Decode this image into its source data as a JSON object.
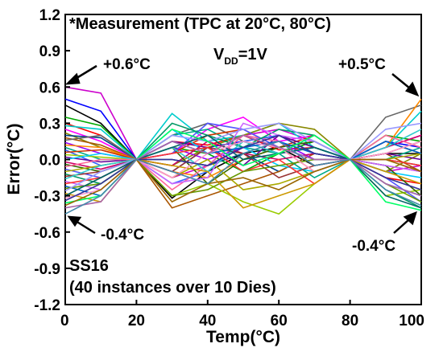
{
  "chart_data": {
    "type": "line",
    "title": "*Measurement (TPC at 20°C, 80°C)",
    "xlabel": "Temp(°C)",
    "ylabel": "Error(°C)",
    "xlim": [
      0,
      100
    ],
    "ylim": [
      -1.2,
      1.2
    ],
    "x_ticks": [
      0,
      20,
      40,
      60,
      80,
      100
    ],
    "y_ticks": [
      1.2,
      0.9,
      0.6,
      0.3,
      0.0,
      -0.3,
      -0.6,
      -0.9,
      -1.2
    ],
    "x_tick_labels": [
      "0",
      "20",
      "40",
      "60",
      "80",
      "100"
    ],
    "y_tick_labels": [
      "1.2",
      "0.9",
      "0.6",
      "0.3",
      "0.0",
      "-0.3",
      "-0.6",
      "-0.9",
      "-1.2"
    ],
    "x": [
      0,
      10,
      20,
      30,
      40,
      50,
      60,
      70,
      80,
      90,
      100
    ],
    "grid": false,
    "legend": "none",
    "annotations": {
      "vdd_main": "V",
      "vdd_sub": "DD",
      "vdd_value": "=1V",
      "max_left": "+0.6°C",
      "max_right": "+0.5°C",
      "min_left": "-0.4°C",
      "min_right": "-0.4°C",
      "corner": "SS16",
      "instances": "(40 instances over 10 Dies)"
    },
    "series": [
      {
        "color": "#cc00cc",
        "values": [
          0.6,
          0.55,
          0.0,
          -0.15,
          -0.05,
          0.2,
          0.25,
          0.15,
          0.0,
          -0.1,
          -0.05
        ]
      },
      {
        "color": "#0000ff",
        "values": [
          0.5,
          0.4,
          0.0,
          -0.1,
          0.1,
          0.15,
          0.05,
          0.1,
          0.0,
          0.15,
          0.1
        ]
      },
      {
        "color": "#000000",
        "values": [
          0.45,
          0.3,
          0.0,
          -0.32,
          -0.1,
          0.05,
          0.1,
          -0.05,
          0.0,
          0.05,
          0.05
        ]
      },
      {
        "color": "#00aa00",
        "values": [
          0.35,
          0.28,
          0.0,
          0.1,
          0.05,
          -0.1,
          0.05,
          0.15,
          0.0,
          0.2,
          0.15
        ]
      },
      {
        "color": "#ff0000",
        "values": [
          0.3,
          0.2,
          0.0,
          0.15,
          0.12,
          0.2,
          0.08,
          0.1,
          0.0,
          -0.15,
          -0.2
        ]
      },
      {
        "color": "#00cccc",
        "values": [
          0.28,
          0.25,
          0.0,
          0.38,
          0.15,
          0.2,
          0.3,
          0.1,
          0.0,
          0.1,
          0.4
        ]
      },
      {
        "color": "#ff00ff",
        "values": [
          0.25,
          0.15,
          0.0,
          0.05,
          0.25,
          0.35,
          0.15,
          0.2,
          0.0,
          0.1,
          0.2
        ]
      },
      {
        "color": "#888800",
        "values": [
          0.22,
          0.1,
          0.0,
          -0.05,
          0.1,
          0.2,
          0.3,
          0.25,
          0.0,
          -0.1,
          0.05
        ]
      },
      {
        "color": "#004488",
        "values": [
          0.2,
          0.18,
          0.0,
          0.0,
          -0.05,
          0.05,
          -0.1,
          0.05,
          0.0,
          0.0,
          -0.05
        ]
      },
      {
        "color": "#aa5500",
        "values": [
          0.18,
          0.12,
          0.0,
          -0.4,
          -0.3,
          -0.2,
          -0.1,
          0.05,
          0.0,
          0.05,
          -0.1
        ]
      },
      {
        "color": "#666666",
        "values": [
          0.16,
          0.2,
          0.0,
          0.2,
          0.3,
          0.15,
          0.2,
          0.1,
          0.0,
          0.35,
          0.45
        ]
      },
      {
        "color": "#9900ff",
        "values": [
          0.14,
          0.05,
          0.0,
          0.1,
          0.0,
          0.1,
          0.15,
          0.0,
          0.0,
          -0.05,
          -0.1
        ]
      },
      {
        "color": "#ff8800",
        "values": [
          0.12,
          0.1,
          0.0,
          -0.1,
          -0.15,
          0.0,
          0.1,
          -0.1,
          0.0,
          0.1,
          0.5
        ]
      },
      {
        "color": "#00aa88",
        "values": [
          0.1,
          0.0,
          0.0,
          0.2,
          0.25,
          0.1,
          0.05,
          -0.15,
          0.0,
          0.0,
          0.1
        ]
      },
      {
        "color": "#3366ff",
        "values": [
          0.08,
          -0.05,
          0.0,
          -0.2,
          -0.1,
          0.15,
          0.2,
          0.05,
          0.0,
          -0.2,
          -0.3
        ]
      },
      {
        "color": "#cc3300",
        "values": [
          0.06,
          0.08,
          0.0,
          0.05,
          0.2,
          0.25,
          0.1,
          0.2,
          0.0,
          0.15,
          0.05
        ]
      },
      {
        "color": "#99cc00",
        "values": [
          0.04,
          0.02,
          0.0,
          -0.3,
          -0.2,
          -0.35,
          -0.45,
          -0.2,
          0.0,
          -0.3,
          -0.25
        ]
      },
      {
        "color": "#660099",
        "values": [
          0.02,
          -0.02,
          0.0,
          0.15,
          0.1,
          -0.05,
          0.2,
          0.1,
          0.0,
          0.05,
          0.0
        ]
      },
      {
        "color": "#00ccff",
        "values": [
          0.0,
          0.05,
          0.0,
          0.25,
          0.05,
          0.1,
          -0.05,
          -0.1,
          0.0,
          -0.1,
          -0.15
        ]
      },
      {
        "color": "#cc0066",
        "values": [
          -0.02,
          -0.08,
          0.0,
          -0.05,
          0.15,
          0.05,
          0.0,
          0.05,
          0.0,
          0.1,
          0.2
        ]
      },
      {
        "color": "#336600",
        "values": [
          -0.04,
          -0.1,
          0.0,
          0.1,
          -0.2,
          0.0,
          0.1,
          0.15,
          0.0,
          -0.05,
          -0.3
        ]
      },
      {
        "color": "#ff6699",
        "values": [
          -0.06,
          0.0,
          0.0,
          -0.25,
          -0.05,
          0.2,
          0.15,
          -0.05,
          0.0,
          0.2,
          0.1
        ]
      },
      {
        "color": "#5555ff",
        "values": [
          -0.08,
          -0.15,
          0.0,
          0.05,
          0.3,
          0.25,
          0.1,
          0.0,
          0.0,
          -0.15,
          -0.35
        ]
      },
      {
        "color": "#aaaa00",
        "values": [
          -0.1,
          -0.05,
          0.0,
          -0.15,
          0.0,
          -0.25,
          -0.2,
          -0.1,
          0.0,
          0.0,
          0.05
        ]
      },
      {
        "color": "#009966",
        "values": [
          -0.12,
          -0.2,
          0.0,
          0.3,
          0.2,
          0.1,
          0.25,
          0.2,
          0.0,
          -0.25,
          -0.4
        ]
      },
      {
        "color": "#993333",
        "values": [
          -0.14,
          -0.1,
          0.0,
          -0.1,
          0.1,
          0.05,
          -0.15,
          -0.05,
          0.0,
          0.05,
          0.15
        ]
      },
      {
        "color": "#33cccc",
        "values": [
          -0.16,
          -0.05,
          0.0,
          0.1,
          -0.1,
          0.15,
          0.05,
          0.1,
          0.0,
          0.1,
          0.25
        ]
      },
      {
        "color": "#cc66ff",
        "values": [
          -0.18,
          -0.25,
          0.0,
          -0.2,
          -0.15,
          0.3,
          0.2,
          0.15,
          0.0,
          -0.05,
          -0.1
        ]
      },
      {
        "color": "#ff3333",
        "values": [
          -0.2,
          -0.15,
          0.0,
          0.05,
          0.1,
          -0.1,
          0.0,
          -0.2,
          0.0,
          0.0,
          -0.05
        ]
      },
      {
        "color": "#0066cc",
        "values": [
          -0.22,
          -0.3,
          0.0,
          0.15,
          0.05,
          0.1,
          0.15,
          0.05,
          0.0,
          0.15,
          0.05
        ]
      },
      {
        "color": "#669900",
        "values": [
          -0.24,
          -0.2,
          0.0,
          -0.3,
          -0.25,
          -0.1,
          -0.05,
          0.0,
          0.0,
          -0.2,
          -0.35
        ]
      },
      {
        "color": "#9999ff",
        "values": [
          -0.26,
          -0.1,
          0.0,
          0.2,
          0.15,
          0.25,
          0.3,
          0.15,
          0.0,
          0.25,
          0.3
        ]
      },
      {
        "color": "#cc9900",
        "values": [
          -0.28,
          -0.35,
          0.0,
          -0.05,
          -0.1,
          -0.4,
          -0.3,
          -0.2,
          0.0,
          -0.1,
          -0.2
        ]
      },
      {
        "color": "#006666",
        "values": [
          -0.3,
          -0.15,
          0.0,
          0.1,
          0.2,
          0.0,
          0.05,
          0.1,
          0.0,
          -0.3,
          -0.4
        ]
      },
      {
        "color": "#ff99cc",
        "values": [
          -0.32,
          -0.25,
          0.0,
          -0.15,
          0.05,
          0.15,
          0.1,
          -0.1,
          0.0,
          0.05,
          0.15
        ]
      },
      {
        "color": "#333399",
        "values": [
          -0.34,
          -0.2,
          0.0,
          0.0,
          -0.05,
          0.1,
          0.2,
          0.05,
          0.0,
          -0.15,
          -0.25
        ]
      },
      {
        "color": "#00ff66",
        "values": [
          -0.36,
          -0.3,
          0.0,
          0.25,
          0.15,
          -0.05,
          0.05,
          0.2,
          0.0,
          -0.35,
          -0.42
        ]
      },
      {
        "color": "#996600",
        "values": [
          -0.38,
          -0.25,
          0.0,
          -0.35,
          -0.2,
          -0.15,
          -0.25,
          -0.1,
          0.0,
          0.0,
          -0.1
        ]
      },
      {
        "color": "#aa66aa",
        "values": [
          -0.4,
          -0.35,
          0.0,
          0.15,
          0.05,
          0.2,
          0.1,
          0.0,
          0.0,
          -0.2,
          -0.3
        ]
      },
      {
        "color": "#4488aa",
        "values": [
          -0.45,
          -0.3,
          0.0,
          -0.1,
          -0.2,
          0.05,
          0.15,
          -0.05,
          0.0,
          -0.25,
          -0.38
        ]
      }
    ]
  }
}
